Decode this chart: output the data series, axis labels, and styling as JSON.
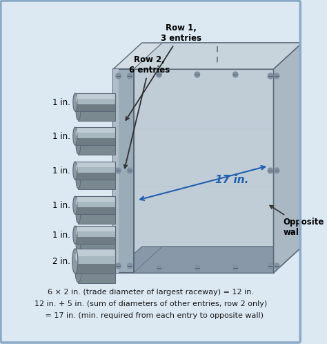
{
  "bg_color": "#dce8f2",
  "caption_lines": [
    "6 × 2 in. (trade diameter of largest raceway) = 12 in.",
    "12 in. + 5 in. (sum of diameters of other entries, row 2 only)",
    "   = 17 in. (min. required from each entry to opposite wall)"
  ],
  "row1_label": "Row 1,\n3 entries",
  "row2_label": "Row 2,\n6 entries",
  "conduit_labels": [
    "1 in.",
    "1 in.",
    "1 in.",
    "1 in.",
    "1 in.",
    "2 in."
  ],
  "dim_label": "17 in.",
  "opp_wall_label": "Opposite\nwall",
  "steel_top": "#d4dce4",
  "steel_front": "#9aa8b4",
  "steel_interior": "#c0ccd6",
  "steel_right": "#aab8c4",
  "steel_bottom": "#8898a8",
  "steel_edge": "#5a6878",
  "conduit_body": "#a8b4bc",
  "conduit_highlight": "#d0d8dc",
  "conduit_shadow": "#707880",
  "conduit_end": "#909aa4",
  "dim_color": "#2060b0",
  "arrow_color": "#303030",
  "screw_fill": "#8090a0",
  "screw_edge": "#506070"
}
